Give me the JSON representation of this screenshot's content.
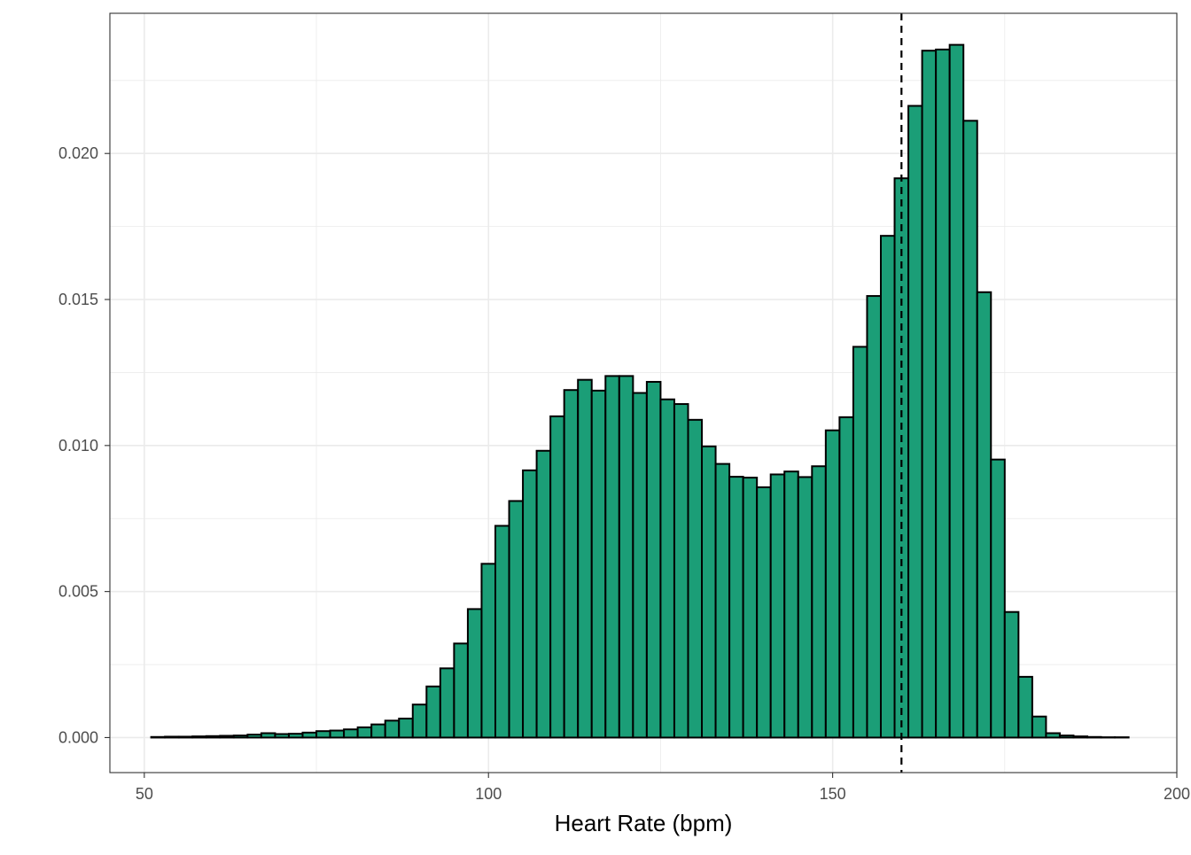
{
  "chart_data": {
    "type": "bar",
    "subtype": "histogram",
    "title": "",
    "xlabel": "Heart Rate (bpm)",
    "ylabel": "",
    "xlim": [
      45,
      200
    ],
    "ylim": [
      -0.0012,
      0.0248
    ],
    "x_ticks": [
      50,
      100,
      150,
      200
    ],
    "x_tick_labels": [
      "50",
      "100",
      "150",
      "200"
    ],
    "y_ticks": [
      0,
      0.005,
      0.01,
      0.015,
      0.02
    ],
    "y_tick_labels": [
      "0.000",
      "0.005",
      "0.010",
      "0.015",
      "0.020"
    ],
    "grid": true,
    "legend": "none",
    "bin_width": 2,
    "bin_start": 51,
    "bar_fill": "#1b9e77",
    "bar_outline": "#000000",
    "reference_line": {
      "x": 160,
      "style": "dashed",
      "color": "#000000"
    },
    "values": [
      2e-05,
      3e-05,
      3e-05,
      4e-05,
      5e-05,
      6e-05,
      7e-05,
      0.0001,
      0.00015,
      0.00012,
      0.00013,
      0.00017,
      0.00022,
      0.00024,
      0.00028,
      0.00035,
      0.00045,
      0.00058,
      0.00065,
      0.00113,
      0.00175,
      0.00237,
      0.00322,
      0.0044,
      0.00595,
      0.00725,
      0.0081,
      0.00915,
      0.00982,
      0.011,
      0.0119,
      0.01225,
      0.01188,
      0.01238,
      0.01238,
      0.0118,
      0.01218,
      0.01158,
      0.01142,
      0.01088,
      0.00997,
      0.00937,
      0.00893,
      0.0089,
      0.00857,
      0.00901,
      0.00911,
      0.00892,
      0.00929,
      0.01052,
      0.01097,
      0.01338,
      0.01512,
      0.01718,
      0.01915,
      0.02163,
      0.02352,
      0.02356,
      0.02372,
      0.02112,
      0.01525,
      0.00952,
      0.0043,
      0.00208,
      0.00072,
      0.00015,
      7e-05,
      4e-05,
      2e-05,
      1e-05,
      1e-05
    ]
  }
}
